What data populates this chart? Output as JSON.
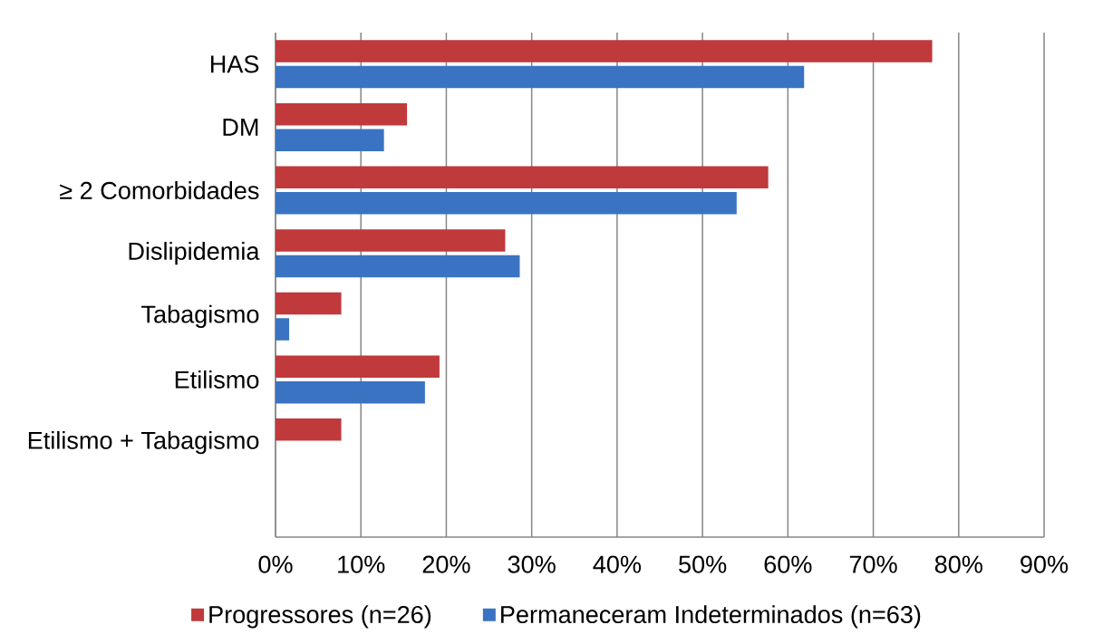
{
  "chart_data": {
    "type": "bar",
    "orientation": "horizontal",
    "categories": [
      "HAS",
      "DM",
      "≥ 2 Comorbidades",
      "Dislipidemia",
      "Tabagismo",
      "Etilismo",
      "Etilismo + Tabagismo",
      null
    ],
    "series": [
      {
        "name": "Progressores (n=26)",
        "color": "#c0393b",
        "values": [
          76.9,
          15.4,
          57.7,
          26.9,
          7.7,
          19.2,
          7.7,
          null
        ]
      },
      {
        "name": "Permaneceram Indeterminados (n=63)",
        "color": "#3a73c2",
        "values": [
          61.9,
          12.7,
          54.0,
          28.6,
          1.6,
          17.5,
          null,
          null
        ]
      }
    ],
    "xlim": [
      0,
      90
    ],
    "xticks": [
      {
        "value": 0,
        "label": "0%"
      },
      {
        "value": 10,
        "label": "10%"
      },
      {
        "value": 20,
        "label": "20%"
      },
      {
        "value": 30,
        "label": "30%"
      },
      {
        "value": 40,
        "label": "40%"
      },
      {
        "value": 50,
        "label": "50%"
      },
      {
        "value": 60,
        "label": "60%"
      },
      {
        "value": 70,
        "label": "70%"
      },
      {
        "value": 80,
        "label": "80%"
      },
      {
        "value": 90,
        "label": "90%"
      }
    ],
    "grid": "x",
    "legend": "bottom"
  }
}
